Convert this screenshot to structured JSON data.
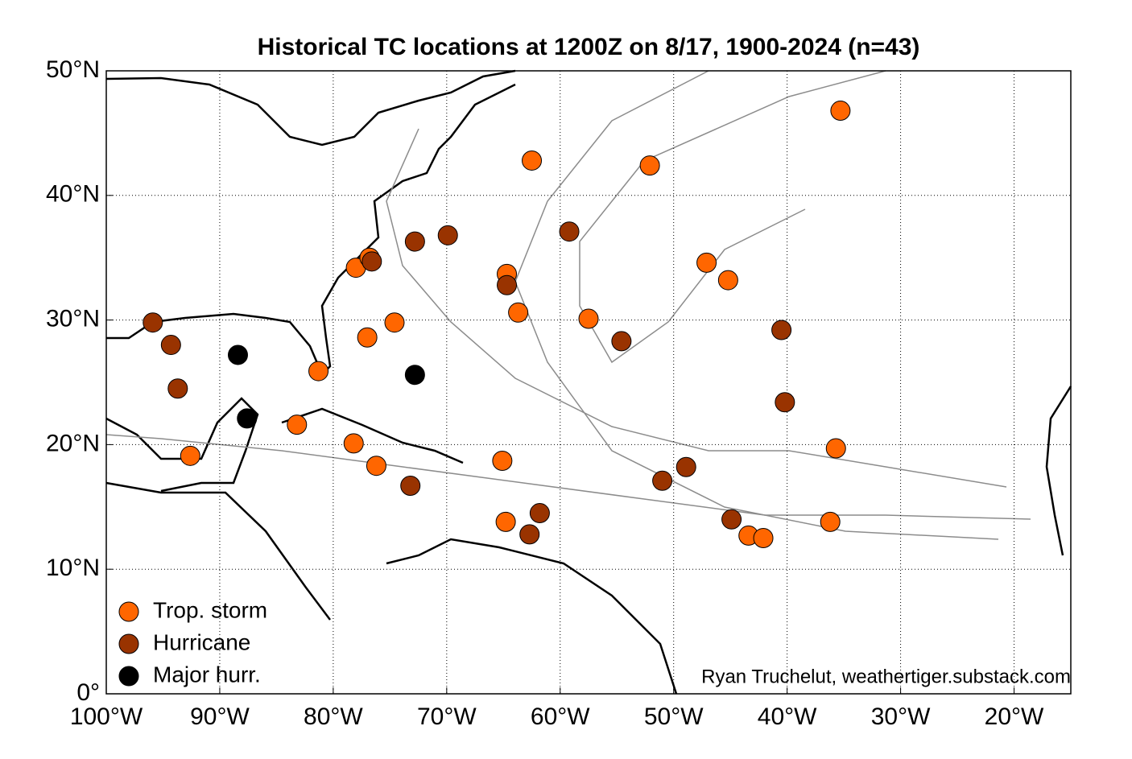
{
  "chart_data": {
    "type": "scatter",
    "title": "Historical TC locations at 1200Z on 8/17, 1900-2024 (n=43)",
    "annotation": "Ryan Truchelut, weathertiger.substack.com",
    "xlim": [
      -100,
      -15
    ],
    "ylim": [
      0,
      50
    ],
    "xticks": [
      {
        "value": -100,
        "label": "100°W"
      },
      {
        "value": -90,
        "label": "90°W"
      },
      {
        "value": -80,
        "label": "80°W"
      },
      {
        "value": -70,
        "label": "70°W"
      },
      {
        "value": -60,
        "label": "60°W"
      },
      {
        "value": -50,
        "label": "50°W"
      },
      {
        "value": -40,
        "label": "40°W"
      },
      {
        "value": -30,
        "label": "30°W"
      },
      {
        "value": -20,
        "label": "20°W"
      }
    ],
    "yticks": [
      {
        "value": 0,
        "label": "0°"
      },
      {
        "value": 10,
        "label": "10°N"
      },
      {
        "value": 20,
        "label": "20°N"
      },
      {
        "value": 30,
        "label": "30°N"
      },
      {
        "value": 40,
        "label": "40°N"
      },
      {
        "value": 50,
        "label": "50°N"
      }
    ],
    "grid": true,
    "legend": "lower left",
    "series": [
      {
        "name": "Trop. storm",
        "color": "#ff6600",
        "x": [
          -35.3,
          -62.5,
          -52.1,
          -47.1,
          -45.2,
          -64.7,
          -63.7,
          -57.5,
          -78.0,
          -76.8,
          -74.6,
          -77.0,
          -81.3,
          -83.2,
          -78.2,
          -76.2,
          -92.6,
          -65.1,
          -64.8,
          -35.7,
          -36.2,
          -43.4,
          -42.1
        ],
        "values": [
          46.8,
          42.8,
          42.4,
          34.6,
          33.2,
          33.7,
          30.6,
          30.1,
          34.2,
          35.0,
          29.8,
          28.6,
          25.9,
          21.6,
          20.1,
          18.3,
          19.1,
          18.7,
          13.8,
          19.7,
          13.8,
          12.7,
          12.5
        ]
      },
      {
        "name": "Hurricane",
        "color": "#993300",
        "x": [
          -95.9,
          -94.3,
          -93.7,
          -76.6,
          -72.8,
          -69.9,
          -59.2,
          -64.7,
          -54.6,
          -40.5,
          -40.2,
          -48.9,
          -51.0,
          -73.2,
          -61.8,
          -62.7,
          -44.9
        ],
        "values": [
          29.8,
          28.0,
          24.5,
          34.7,
          36.3,
          36.8,
          37.1,
          32.8,
          28.3,
          29.2,
          23.4,
          18.2,
          17.1,
          16.7,
          14.5,
          12.8,
          14.0
        ]
      },
      {
        "name": "Major hurr.",
        "color": "#000000",
        "x": [
          -88.4,
          -72.8,
          -87.6
        ],
        "values": [
          27.2,
          25.6,
          22.1
        ]
      }
    ]
  }
}
